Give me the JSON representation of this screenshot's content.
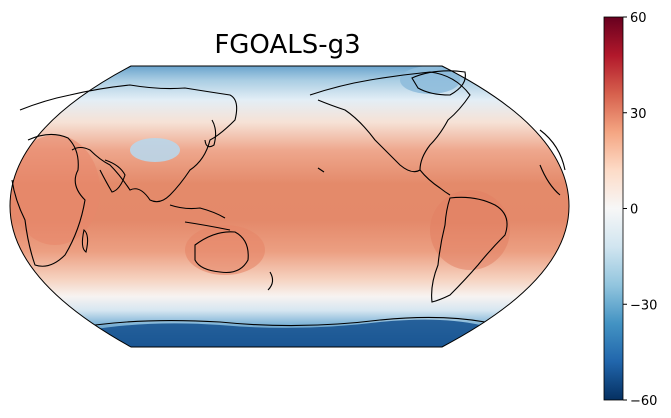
{
  "title": "FGOALS-g3",
  "colorbar": {
    "min": -60,
    "max": 60,
    "ticks": [
      {
        "value": 60,
        "label": "60"
      },
      {
        "value": 30,
        "label": "30"
      },
      {
        "value": 0,
        "label": "0"
      },
      {
        "value": -30,
        "label": "−30"
      },
      {
        "value": -60,
        "label": "−60"
      }
    ],
    "colormap": "RdBu_r"
  },
  "map": {
    "projection": "Robinson",
    "central_longitude": 180,
    "coastlines": true
  }
}
